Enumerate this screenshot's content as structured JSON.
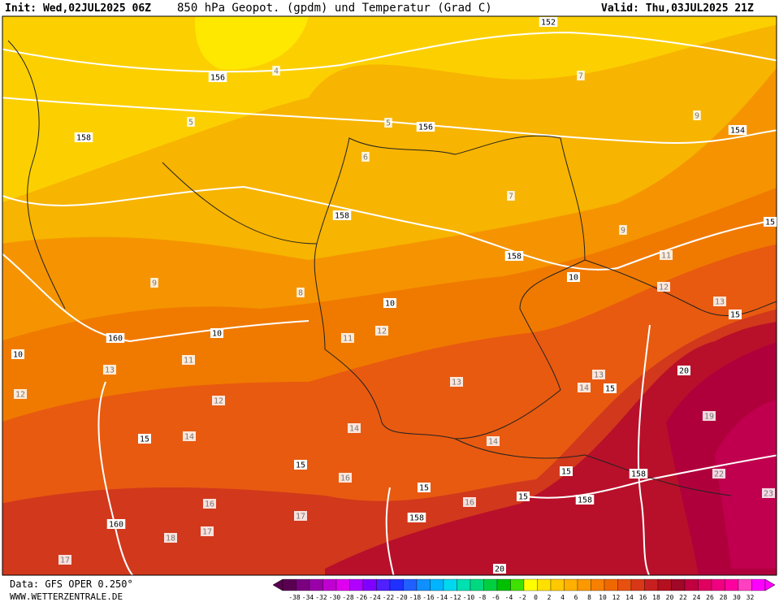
{
  "header": {
    "init": "Init: Wed,02JUL2025 06Z",
    "title": "850 hPa Geopot. (gpdm) und Temperatur (Grad C)",
    "valid": "Valid: Thu,03JUL2025 21Z"
  },
  "footer": {
    "source": "Data: GFS OPER 0.250°",
    "website": "WWW.WETTERZENTRALE.DE"
  },
  "map_labels": [
    152,
    156,
    156,
    154,
    158,
    158,
    158,
    160,
    160,
    158,
    158,
    158,
    10,
    10,
    10,
    10,
    15,
    15,
    15,
    15,
    15,
    15,
    15,
    15,
    20,
    20,
    4,
    5,
    5,
    7,
    9,
    12,
    11,
    13,
    14,
    16,
    17,
    17,
    18,
    22,
    23,
    19,
    12,
    13,
    14,
    11,
    12,
    9,
    8,
    6,
    7,
    9,
    11,
    12,
    13,
    14,
    13,
    14,
    16,
    17,
    16
  ],
  "color_scale": {
    "labels": [
      -38,
      -34,
      -32,
      -30,
      -28,
      -26,
      -24,
      -22,
      -20,
      -18,
      -16,
      -14,
      -12,
      -10,
      -8,
      -6,
      -4,
      -2,
      0,
      2,
      4,
      6,
      8,
      10,
      12,
      14,
      16,
      18,
      20,
      22,
      24,
      26,
      28,
      30,
      32
    ],
    "colors": [
      "#5a0050",
      "#7a0080",
      "#9a00a8",
      "#c000d0",
      "#e000f0",
      "#b000ff",
      "#8000ff",
      "#5020ff",
      "#2030ff",
      "#2060ff",
      "#1090ff",
      "#00b4ff",
      "#00d8f0",
      "#00e0b0",
      "#00d880",
      "#00d040",
      "#00c000",
      "#40e000",
      "#ffff00",
      "#ffe000",
      "#ffc800",
      "#ffb000",
      "#fc9800",
      "#f88000",
      "#f06800",
      "#e85010",
      "#d83818",
      "#c82020",
      "#b41020",
      "#a00828",
      "#c00040",
      "#e00060",
      "#f00080",
      "#ff00a0",
      "#ff40c0",
      "#ff00ff"
    ]
  }
}
